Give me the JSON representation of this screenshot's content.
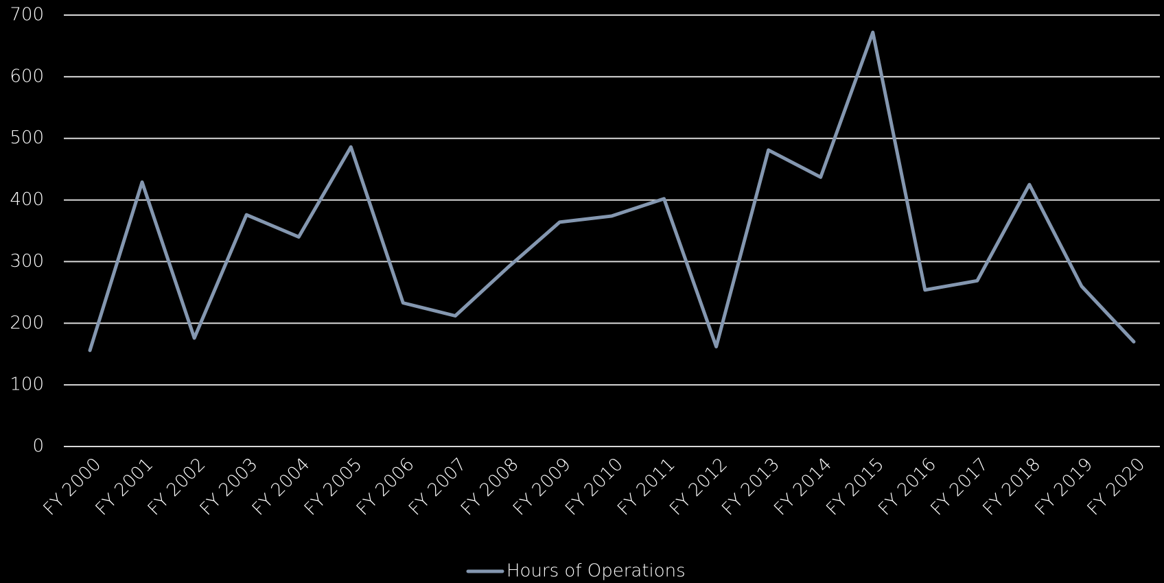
{
  "chart_data": {
    "type": "line",
    "categories": [
      "FY 2000",
      "FY 2001",
      "FY 2002",
      "FY 2003",
      "FY 2004",
      "FY 2005",
      "FY 2006",
      "FY 2007",
      "FY 2008",
      "FY 2009",
      "FY 2010",
      "FY 2011",
      "FY 2012",
      "FY 2013",
      "FY 2014",
      "FY 2015",
      "FY 2016",
      "FY 2017",
      "FY 2018",
      "FY 2019",
      "FY 2020"
    ],
    "series": [
      {
        "name": "Hours of Operations",
        "color": "#8497b0",
        "values": [
          156,
          429,
          176,
          376,
          340,
          486,
          233,
          212,
          290,
          364,
          374,
          402,
          162,
          481,
          437,
          672,
          254,
          269,
          425,
          260,
          170
        ]
      }
    ],
    "ylim": [
      0,
      700
    ],
    "yticks": [
      0,
      100,
      200,
      300,
      400,
      500,
      600,
      700
    ],
    "grid": true,
    "legend": "bottom"
  }
}
